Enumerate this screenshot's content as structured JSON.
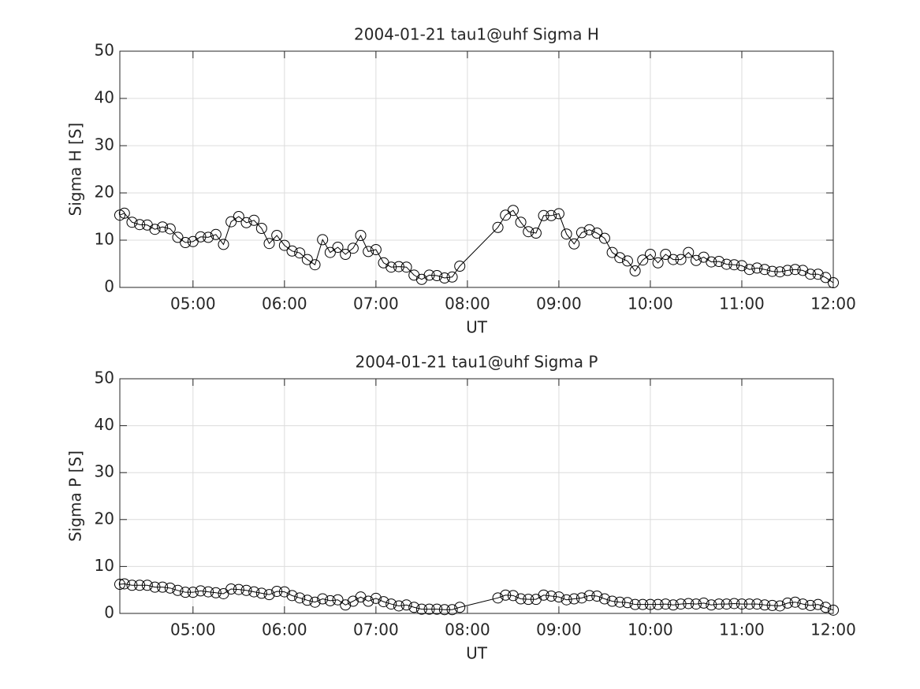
{
  "chart_data": [
    {
      "type": "line",
      "title": "2004-01-21  tau1@uhf Sigma H",
      "xlabel": "UT",
      "ylabel": "Sigma H [S]",
      "xlim": [
        "04:12",
        "12:00"
      ],
      "xticks": [
        "05:00",
        "06:00",
        "07:00",
        "08:00",
        "09:00",
        "10:00",
        "11:00",
        "12:00"
      ],
      "ylim": [
        0,
        50
      ],
      "yticks": [
        0,
        10,
        20,
        30,
        40,
        50
      ],
      "grid": true,
      "color": "#000000",
      "x": [
        "04:12",
        "04:15",
        "04:20",
        "04:25",
        "04:30",
        "04:35",
        "04:40",
        "04:45",
        "04:50",
        "04:55",
        "05:00",
        "05:05",
        "05:10",
        "05:15",
        "05:20",
        "05:25",
        "05:30",
        "05:35",
        "05:40",
        "05:45",
        "05:50",
        "05:55",
        "06:00",
        "06:05",
        "06:10",
        "06:15",
        "06:20",
        "06:25",
        "06:30",
        "06:35",
        "06:40",
        "06:45",
        "06:50",
        "06:55",
        "07:00",
        "07:05",
        "07:10",
        "07:15",
        "07:20",
        "07:25",
        "07:30",
        "07:35",
        "07:40",
        "07:45",
        "07:50",
        "07:55",
        "08:20",
        "08:25",
        "08:30",
        "08:35",
        "08:40",
        "08:45",
        "08:50",
        "08:55",
        "09:00",
        "09:05",
        "09:10",
        "09:15",
        "09:20",
        "09:25",
        "09:30",
        "09:35",
        "09:40",
        "09:45",
        "09:50",
        "09:55",
        "10:00",
        "10:05",
        "10:10",
        "10:15",
        "10:20",
        "10:25",
        "10:30",
        "10:35",
        "10:40",
        "10:45",
        "10:50",
        "10:55",
        "11:00",
        "11:05",
        "11:10",
        "11:15",
        "11:20",
        "11:25",
        "11:30",
        "11:35",
        "11:40",
        "11:45",
        "11:50",
        "11:55",
        "12:00"
      ],
      "values": [
        15.3,
        15.7,
        13.8,
        13.3,
        13.2,
        12.3,
        12.8,
        12.4,
        10.6,
        9.5,
        9.7,
        10.7,
        10.6,
        11.2,
        9.1,
        13.9,
        15.0,
        13.7,
        14.2,
        12.5,
        9.3,
        11.0,
        8.9,
        7.7,
        7.3,
        5.9,
        4.8,
        10.1,
        7.4,
        8.5,
        7.0,
        8.3,
        11.0,
        7.6,
        8.0,
        5.2,
        4.3,
        4.4,
        4.3,
        2.6,
        1.7,
        2.6,
        2.5,
        2.0,
        2.2,
        4.5,
        12.7,
        15.3,
        16.3,
        13.8,
        11.8,
        11.5,
        15.2,
        15.2,
        15.6,
        11.3,
        9.2,
        11.6,
        12.2,
        11.5,
        10.4,
        7.4,
        6.3,
        5.6,
        3.5,
        5.8,
        7.0,
        5.2,
        7.0,
        5.9,
        5.9,
        7.4,
        5.7,
        6.4,
        5.4,
        5.5,
        4.9,
        4.8,
        4.6,
        3.8,
        4.1,
        3.8,
        3.4,
        3.3,
        3.6,
        3.8,
        3.6,
        2.8,
        2.8,
        2.1,
        1.0
      ]
    },
    {
      "type": "line",
      "title": "2004-01-21  tau1@uhf Sigma P",
      "xlabel": "UT",
      "ylabel": "Sigma P [S]",
      "xlim": [
        "04:12",
        "12:00"
      ],
      "xticks": [
        "05:00",
        "06:00",
        "07:00",
        "08:00",
        "09:00",
        "10:00",
        "11:00",
        "12:00"
      ],
      "ylim": [
        0,
        50
      ],
      "yticks": [
        0,
        10,
        20,
        30,
        40,
        50
      ],
      "grid": true,
      "color": "#000000",
      "x": [
        "04:12",
        "04:15",
        "04:20",
        "04:25",
        "04:30",
        "04:35",
        "04:40",
        "04:45",
        "04:50",
        "04:55",
        "05:00",
        "05:05",
        "05:10",
        "05:15",
        "05:20",
        "05:25",
        "05:30",
        "05:35",
        "05:40",
        "05:45",
        "05:50",
        "05:55",
        "06:00",
        "06:05",
        "06:10",
        "06:15",
        "06:20",
        "06:25",
        "06:30",
        "06:35",
        "06:40",
        "06:45",
        "06:50",
        "06:55",
        "07:00",
        "07:05",
        "07:10",
        "07:15",
        "07:20",
        "07:25",
        "07:30",
        "07:35",
        "07:40",
        "07:45",
        "07:50",
        "07:55",
        "08:20",
        "08:25",
        "08:30",
        "08:35",
        "08:40",
        "08:45",
        "08:50",
        "08:55",
        "09:00",
        "09:05",
        "09:10",
        "09:15",
        "09:20",
        "09:25",
        "09:30",
        "09:35",
        "09:40",
        "09:45",
        "09:50",
        "09:55",
        "10:00",
        "10:05",
        "10:10",
        "10:15",
        "10:20",
        "10:25",
        "10:30",
        "10:35",
        "10:40",
        "10:45",
        "10:50",
        "10:55",
        "11:00",
        "11:05",
        "11:10",
        "11:15",
        "11:20",
        "11:25",
        "11:30",
        "11:35",
        "11:40",
        "11:45",
        "11:50",
        "11:55",
        "12:00"
      ],
      "values": [
        6.2,
        6.3,
        6.0,
        6.0,
        6.0,
        5.6,
        5.6,
        5.4,
        4.9,
        4.5,
        4.5,
        4.8,
        4.6,
        4.4,
        4.2,
        5.2,
        5.1,
        4.9,
        4.6,
        4.3,
        4.0,
        4.7,
        4.6,
        3.8,
        3.3,
        2.8,
        2.4,
        3.1,
        2.7,
        2.9,
        1.8,
        2.6,
        3.5,
        2.6,
        3.2,
        2.5,
        2.0,
        1.6,
        1.8,
        1.3,
        0.9,
        0.9,
        0.9,
        0.8,
        0.8,
        1.3,
        3.3,
        3.9,
        3.8,
        3.1,
        3.0,
        3.0,
        3.9,
        3.7,
        3.5,
        2.9,
        3.1,
        3.3,
        3.8,
        3.7,
        3.1,
        2.6,
        2.4,
        2.3,
        1.9,
        1.9,
        1.9,
        1.9,
        2.0,
        1.8,
        2.0,
        2.1,
        2.0,
        2.2,
        1.8,
        2.0,
        2.0,
        2.1,
        2.0,
        2.0,
        2.0,
        1.8,
        1.7,
        1.6,
        2.2,
        2.4,
        2.0,
        1.7,
        1.9,
        1.3,
        0.7
      ]
    }
  ]
}
